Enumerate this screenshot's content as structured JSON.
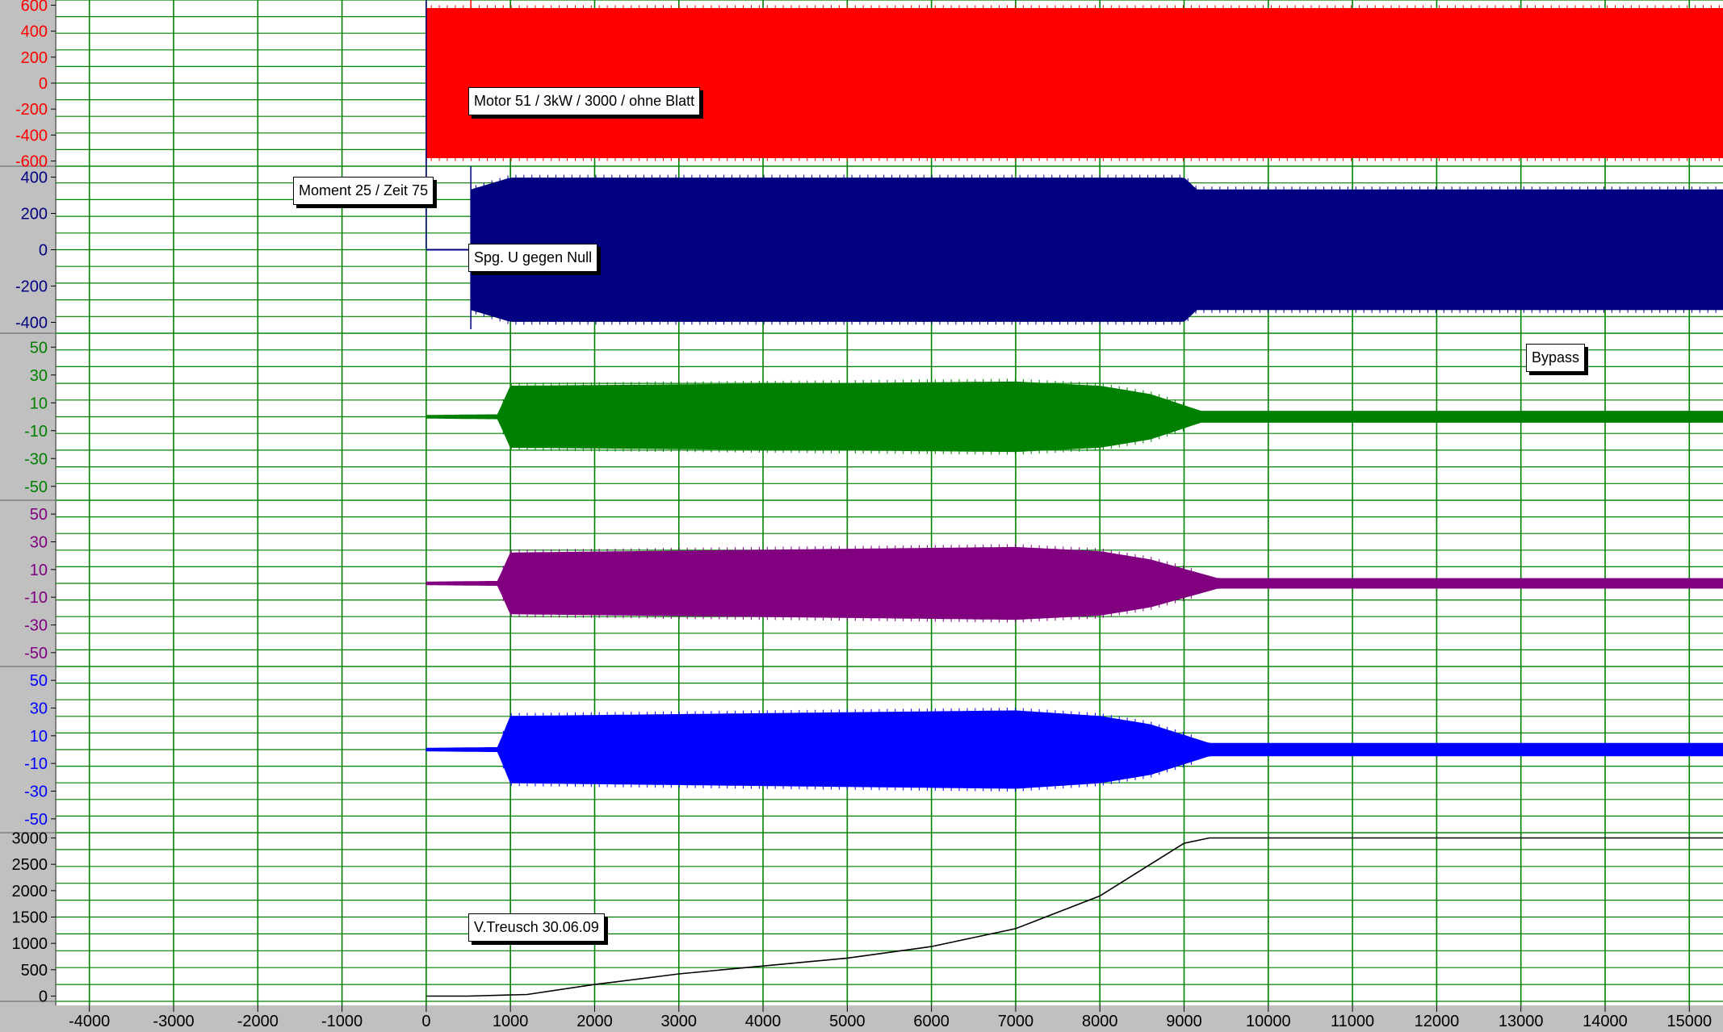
{
  "chart_data": {
    "type": "line",
    "title": "",
    "grid": true,
    "x_axis": {
      "range": [
        -4400,
        15400
      ],
      "ticks": [
        -4000,
        -3000,
        -2000,
        -1000,
        0,
        1000,
        2000,
        3000,
        4000,
        5000,
        6000,
        7000,
        8000,
        9000,
        10000,
        11000,
        12000,
        13000,
        14000,
        15000
      ],
      "tick_labels": [
        "-4000",
        "-3000",
        "-2000",
        "-1000",
        "0",
        "1000",
        "2000",
        "3000",
        "4000",
        "5000",
        "6000",
        "7000",
        "8000",
        "9000",
        "10000",
        "11000",
        "12000",
        "13000",
        "14000",
        "15000"
      ]
    },
    "channels": [
      {
        "color": "#ff0000",
        "ylim": [
          -640,
          640
        ],
        "tick_values": [
          600,
          400,
          200,
          0,
          -200,
          -400,
          -600
        ],
        "tick_labels": [
          "600",
          "400",
          "200",
          "0",
          "-200",
          "-400",
          "-600"
        ],
        "envelope": [
          {
            "x": 0,
            "amp": 575
          },
          {
            "x": 15400,
            "amp": 575
          }
        ]
      },
      {
        "color": "#000080",
        "ylim": [
          -460,
          460
        ],
        "tick_values": [
          400,
          200,
          0,
          -200,
          -400
        ],
        "tick_labels": [
          "400",
          "200",
          "0",
          "-200",
          "-400"
        ],
        "envelope": [
          {
            "x": 530,
            "amp": 330
          },
          {
            "x": 1000,
            "amp": 395
          },
          {
            "x": 9000,
            "amp": 395
          },
          {
            "x": 9150,
            "amp": 330
          },
          {
            "x": 15400,
            "amp": 330
          }
        ]
      },
      {
        "color": "#008000",
        "ylim": [
          -60,
          60
        ],
        "tick_values": [
          50,
          30,
          10,
          -10,
          -30,
          -50
        ],
        "tick_labels": [
          "50",
          "30",
          "10",
          "-10",
          "-30",
          "-50"
        ],
        "envelope": [
          {
            "x": 0,
            "amp": 1
          },
          {
            "x": 850,
            "amp": 1.5
          },
          {
            "x": 1000,
            "amp": 22
          },
          {
            "x": 7000,
            "amp": 25
          },
          {
            "x": 8000,
            "amp": 22
          },
          {
            "x": 8600,
            "amp": 16
          },
          {
            "x": 9200,
            "amp": 4
          },
          {
            "x": 15400,
            "amp": 4
          }
        ]
      },
      {
        "color": "#800080",
        "ylim": [
          -60,
          60
        ],
        "tick_values": [
          50,
          30,
          10,
          -10,
          -30,
          -50
        ],
        "tick_labels": [
          "50",
          "30",
          "10",
          "-10",
          "-30",
          "-50"
        ],
        "envelope": [
          {
            "x": 0,
            "amp": 1
          },
          {
            "x": 850,
            "amp": 1.5
          },
          {
            "x": 1000,
            "amp": 22
          },
          {
            "x": 7000,
            "amp": 26
          },
          {
            "x": 8000,
            "amp": 23
          },
          {
            "x": 8600,
            "amp": 17
          },
          {
            "x": 9400,
            "amp": 3.5
          },
          {
            "x": 15400,
            "amp": 3.5
          }
        ]
      },
      {
        "color": "#0000ff",
        "ylim": [
          -60,
          60
        ],
        "tick_values": [
          50,
          30,
          10,
          -10,
          -30,
          -50
        ],
        "tick_labels": [
          "50",
          "30",
          "10",
          "-10",
          "-30",
          "-50"
        ],
        "envelope": [
          {
            "x": 0,
            "amp": 1
          },
          {
            "x": 850,
            "amp": 1.5
          },
          {
            "x": 1000,
            "amp": 24
          },
          {
            "x": 7000,
            "amp": 28
          },
          {
            "x": 8000,
            "amp": 24
          },
          {
            "x": 8600,
            "amp": 18
          },
          {
            "x": 9300,
            "amp": 4.5
          },
          {
            "x": 15400,
            "amp": 4.5
          }
        ]
      },
      {
        "color": "#000000",
        "ylim": [
          -100,
          3100
        ],
        "tick_values": [
          3000,
          2500,
          2000,
          1500,
          1000,
          500,
          0
        ],
        "tick_labels": [
          "3000",
          "2500",
          "2000",
          "1500",
          "1000",
          "500",
          "0"
        ],
        "series_points": [
          {
            "x": 0,
            "y": 0
          },
          {
            "x": 500,
            "y": 0
          },
          {
            "x": 1200,
            "y": 30
          },
          {
            "x": 2000,
            "y": 220
          },
          {
            "x": 3000,
            "y": 420
          },
          {
            "x": 4000,
            "y": 570
          },
          {
            "x": 5000,
            "y": 720
          },
          {
            "x": 6000,
            "y": 940
          },
          {
            "x": 7000,
            "y": 1280
          },
          {
            "x": 8000,
            "y": 1900
          },
          {
            "x": 8600,
            "y": 2500
          },
          {
            "x": 9000,
            "y": 2900
          },
          {
            "x": 9300,
            "y": 3000
          },
          {
            "x": 15400,
            "y": 3000
          }
        ]
      }
    ],
    "annotations": [
      {
        "text": "Motor 51 / 3kW / 3000 / ohne Blatt"
      },
      {
        "text": "Moment 25 / Zeit 75"
      },
      {
        "text": "Spg. U gegen Null"
      },
      {
        "text": "Bypass"
      },
      {
        "text": "V.Treusch 30.06.09"
      }
    ]
  }
}
